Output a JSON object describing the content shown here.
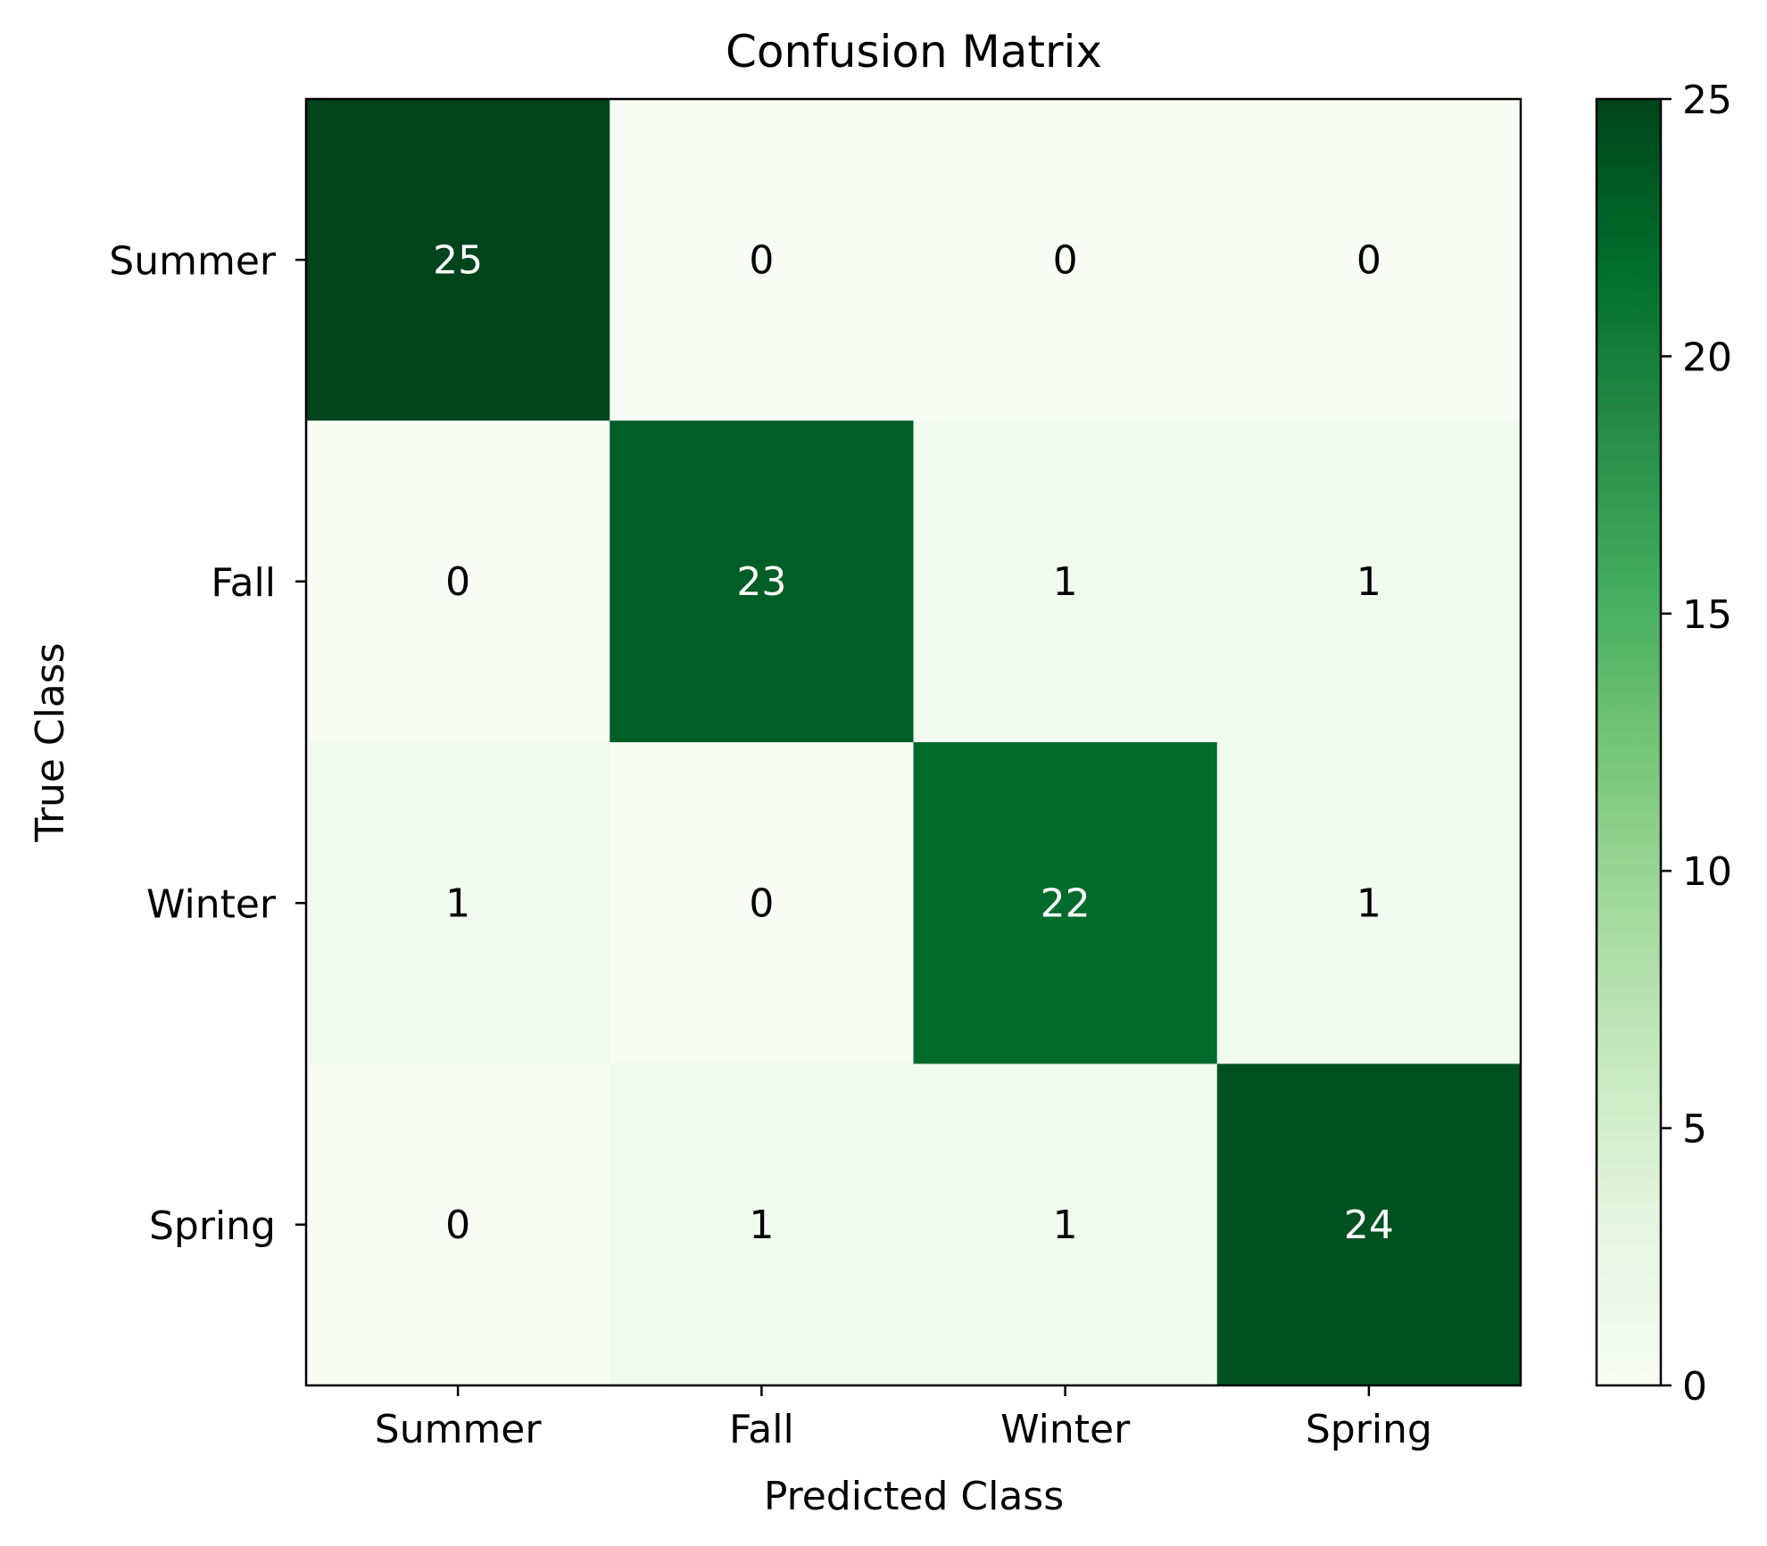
{
  "chart_data": {
    "type": "heatmap",
    "title": "Confusion Matrix",
    "xlabel": "Predicted Class",
    "ylabel": "True Class",
    "x_categories": [
      "Summer",
      "Fall",
      "Winter",
      "Spring"
    ],
    "y_categories": [
      "Summer",
      "Fall",
      "Winter",
      "Spring"
    ],
    "values": [
      [
        25,
        0,
        0,
        0
      ],
      [
        0,
        23,
        1,
        1
      ],
      [
        1,
        0,
        22,
        1
      ],
      [
        0,
        1,
        1,
        24
      ]
    ],
    "colorbar": {
      "min": 0,
      "max": 25,
      "ticks": [
        "0",
        "5",
        "10",
        "15",
        "20",
        "25"
      ],
      "colormap": "Greens",
      "low_color": "#f7fcf5",
      "high_color": "#00441b"
    },
    "annotation_dark_color": "#000000",
    "annotation_light_color": "#ffffff",
    "grid": false
  }
}
